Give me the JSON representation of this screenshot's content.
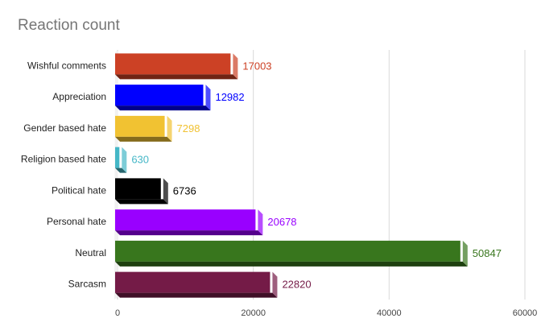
{
  "chart_data": {
    "type": "bar",
    "orientation": "horizontal",
    "title": "Reaction count",
    "xlabel": "",
    "ylabel": "",
    "categories": [
      "Wishful comments",
      "Appreciation",
      "Gender based hate",
      "Religion based hate",
      "Political hate",
      "Personal hate",
      "Neutral",
      "Sarcasm"
    ],
    "values": [
      17003,
      12982,
      7298,
      630,
      6736,
      20678,
      50847,
      22820
    ],
    "value_labels": [
      "17003",
      "12982",
      "7298",
      "630",
      "6736",
      "20678",
      "50847",
      "22820"
    ],
    "colors": [
      "#cc4125",
      "#0000ff",
      "#f1c232",
      "#45b7c7",
      "#000000",
      "#9900ff",
      "#38761d",
      "#741b47"
    ],
    "label_colors": [
      "#cc4125",
      "#0000ff",
      "#f1c232",
      "#45b7c7",
      "#000000",
      "#9900ff",
      "#38761d",
      "#741b47"
    ],
    "xlim": [
      0,
      60000
    ],
    "xticks": [
      0,
      20000,
      40000,
      60000
    ],
    "xtick_labels": [
      "0",
      "20000",
      "40000",
      "60000"
    ],
    "grid": "vertical",
    "legend": "none",
    "style": "3d"
  }
}
